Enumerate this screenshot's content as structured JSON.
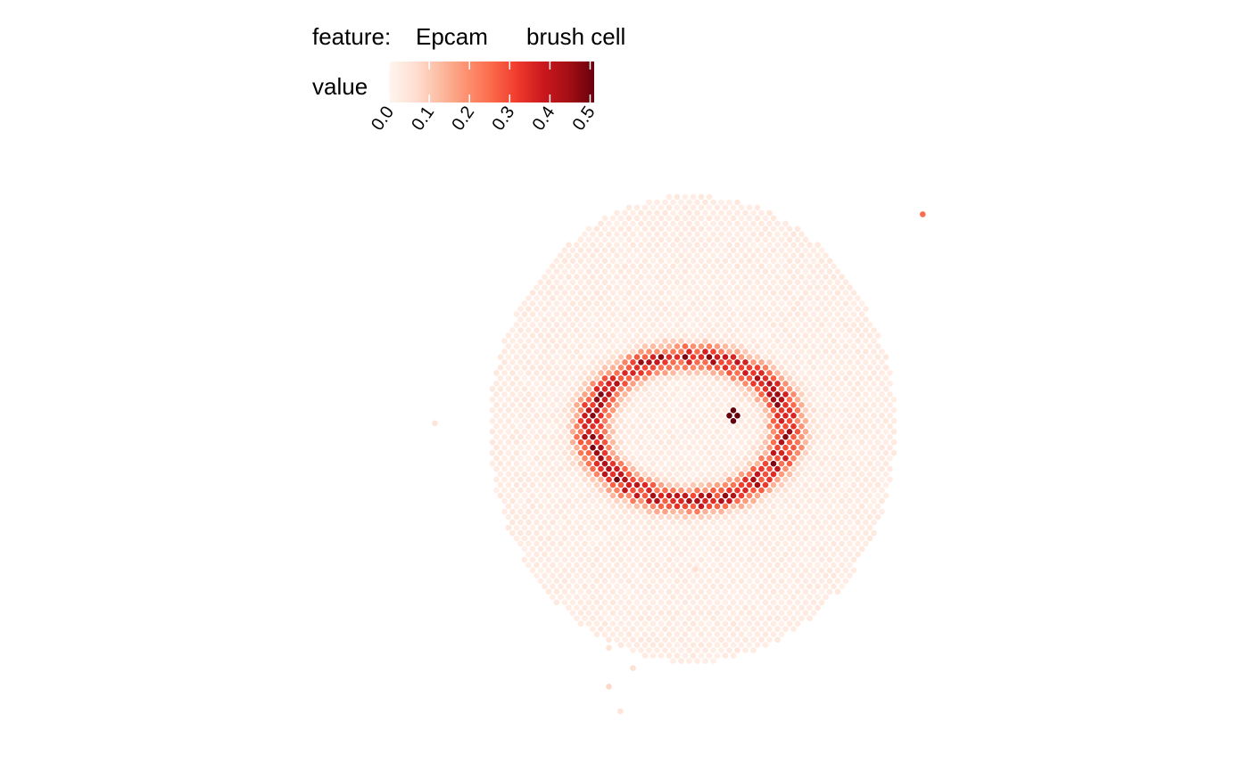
{
  "chart_data": {
    "type": "scatter",
    "title": "",
    "legend": {
      "feature_label": "feature:",
      "feature_value": "Epcam",
      "cell_type": "brush cell",
      "value_label": "value",
      "range": [
        0,
        0.51
      ],
      "ticks": [
        "0.0",
        "0.1",
        "0.2",
        "0.3",
        "0.4",
        "0.5"
      ],
      "colors": [
        "#fff5f0",
        "#fee0d2",
        "#fcbba1",
        "#fc9272",
        "#fb6a4a",
        "#ef3b2c",
        "#cb181d",
        "#a50f15",
        "#67000d"
      ]
    },
    "grid": false,
    "axes_visible": false,
    "x_range": [
      0,
      100
    ],
    "y_range": [
      0,
      100
    ],
    "series": [
      {
        "values_description": "",
        "ring": {
          "center": [
            63,
            47
          ],
          "radius": 13.5,
          "width": 3.2,
          "peak_value": 0.38,
          "background_value": 0.02,
          "hotspot": {
            "at": [
              69.7,
              44.5
            ],
            "value": 0.51
          }
        },
        "outliers": [
          {
            "x": 97.9,
            "y": 8.8,
            "value": 0.25
          },
          {
            "x": 25.0,
            "y": 46.0,
            "value": 0.05
          },
          {
            "x": 63.9,
            "y": 72.0,
            "value": 0.06
          },
          {
            "x": 51.0,
            "y": 92.9,
            "value": 0.08
          },
          {
            "x": 54.6,
            "y": 89.6,
            "value": 0.06
          },
          {
            "x": 52.7,
            "y": 97.3,
            "value": 0.05
          },
          {
            "x": 51.0,
            "y": 86.0,
            "value": 0.05
          }
        ]
      }
    ]
  }
}
